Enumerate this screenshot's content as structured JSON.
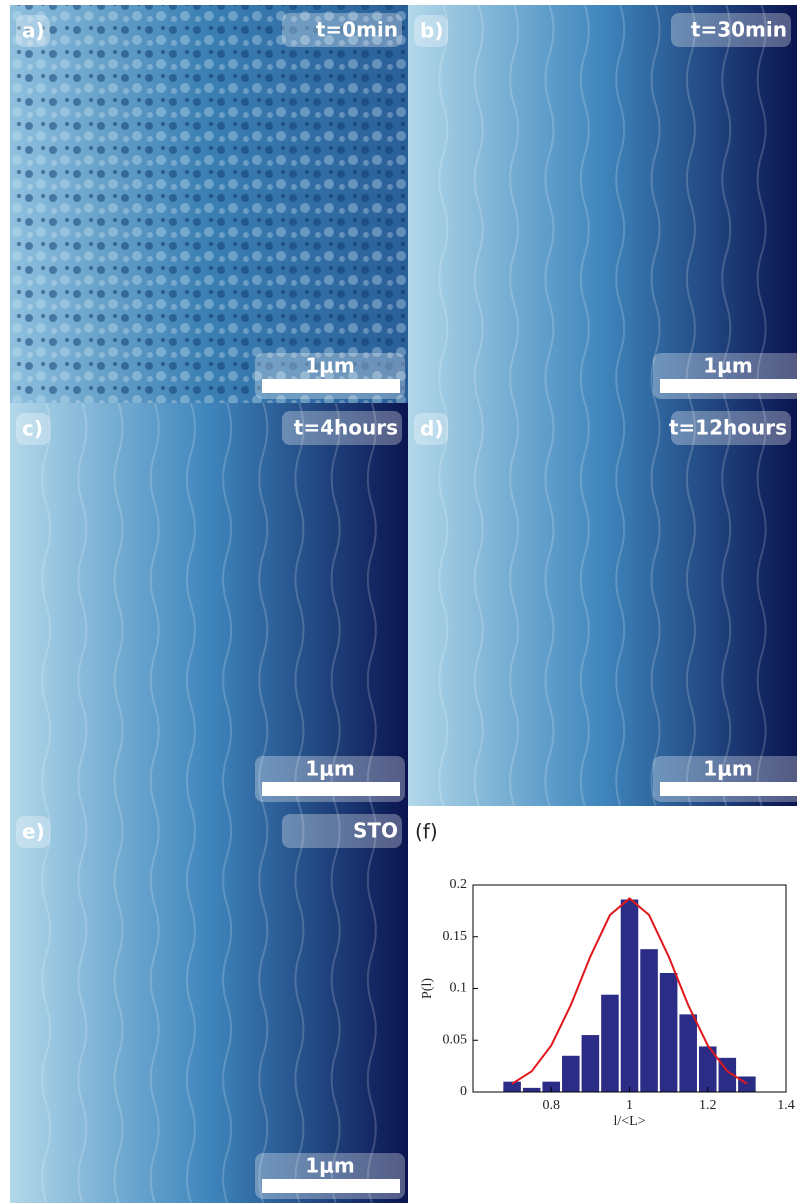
{
  "panels": [
    {
      "label": "a)",
      "time": "t=0min",
      "scale": "1μm"
    },
    {
      "label": "b)",
      "time": "t=30min",
      "scale": "1μm"
    },
    {
      "label": "c)",
      "time": "t=4hours",
      "scale": "1μm"
    },
    {
      "label": "d)",
      "time": "t=12hours",
      "scale": "1μm"
    },
    {
      "label": "e)",
      "time": "STO",
      "scale": "1μm"
    }
  ],
  "chart_data": {
    "type": "histogram",
    "label": "(f)",
    "x_label": "l/<L>",
    "y_label": "P(l)",
    "bins": [
      0.675,
      0.725,
      0.775,
      0.825,
      0.875,
      0.925,
      0.975,
      1.025,
      1.075,
      1.125,
      1.175,
      1.225,
      1.275,
      1.325
    ],
    "values": [
      0.01,
      0.004,
      0.01,
      0.035,
      0.055,
      0.094,
      0.186,
      0.138,
      0.115,
      0.075,
      0.044,
      0.033,
      0.015
    ],
    "color": "#2b2c85",
    "fit": {
      "color": "#e0181c",
      "x": [
        0.7,
        0.75,
        0.8,
        0.85,
        0.9,
        0.95,
        1.0,
        1.05,
        1.1,
        1.15,
        1.2,
        1.25,
        1.3
      ],
      "values": [
        0.008,
        0.02,
        0.045,
        0.084,
        0.131,
        0.171,
        0.187,
        0.171,
        0.131,
        0.084,
        0.045,
        0.02,
        0.008
      ]
    },
    "xlim": [
      0.6,
      1.4
    ],
    "xticks": [
      0.8,
      1,
      1.2,
      1.4
    ],
    "ylim": [
      0,
      0.2
    ],
    "yticks": [
      0,
      0.05,
      0.1,
      0.15,
      0.2
    ]
  }
}
